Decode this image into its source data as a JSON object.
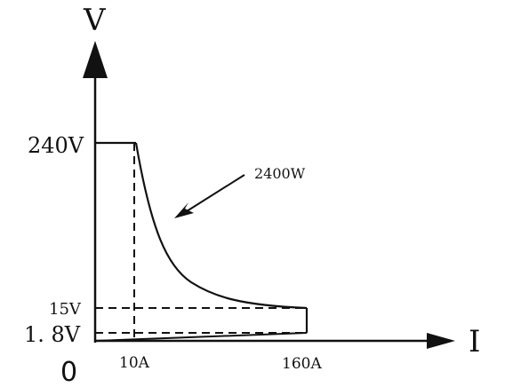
{
  "axes": {
    "y_label": "V",
    "x_label": "I",
    "origin_label": "0"
  },
  "y_ticks": [
    "240V",
    "15V",
    "1. 8V"
  ],
  "x_ticks": [
    "10A",
    "160A"
  ],
  "annotation": "2400W",
  "colors": {
    "ink": "#111111",
    "background": "#ffffff"
  }
}
